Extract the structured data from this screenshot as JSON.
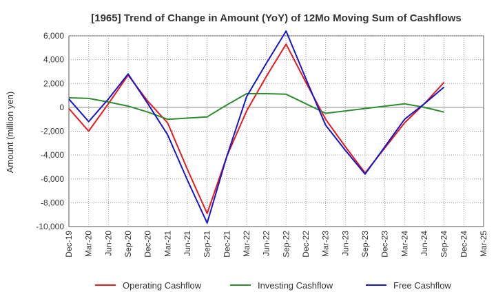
{
  "chart_data": {
    "type": "line",
    "title": "[1965]  Trend of Change in Amount (YoY) of 12Mo Moving Sum of Cashflows",
    "ylabel": "Amount (million yen)",
    "xlabel": "",
    "ylim": [
      -10000,
      6000
    ],
    "yticks": [
      6000,
      4000,
      2000,
      0,
      -2000,
      -4000,
      -6000,
      -8000,
      -10000
    ],
    "ytick_labels": [
      "6,000",
      "4,000",
      "2,000",
      "0",
      "-2,000",
      "-4,000",
      "-6,000",
      "-8,000",
      "-10,000"
    ],
    "categories": [
      "Dec-19",
      "Mar-20",
      "Jun-20",
      "Sep-20",
      "Dec-20",
      "Mar-21",
      "Jun-21",
      "Sep-21",
      "Dec-21",
      "Mar-22",
      "Jun-22",
      "Sep-22",
      "Dec-22",
      "Mar-23",
      "Jun-23",
      "Sep-23",
      "Dec-23",
      "Mar-24",
      "Jun-24",
      "Sep-24",
      "Dec-24",
      "Mar-25"
    ],
    "grid": true,
    "legend_position": "bottom",
    "series": [
      {
        "name": "Operating Cashflow",
        "color": "#e8191a",
        "values": [
          -100,
          -2000,
          300,
          2700,
          500,
          -1300,
          -5200,
          -8900,
          -4100,
          -300,
          2600,
          5300,
          2100,
          -1000,
          -3300,
          -5500,
          -3400,
          -1300,
          300,
          2100,
          null,
          null
        ]
      },
      {
        "name": "Investing Cashflow",
        "color": "#2e8b2e",
        "values": [
          800,
          750,
          450,
          100,
          -400,
          -1000,
          -900,
          -800,
          200,
          1150,
          1150,
          1100,
          300,
          -500,
          -300,
          -100,
          100,
          300,
          0,
          -400,
          null,
          null
        ]
      },
      {
        "name": "Free Cashflow",
        "color": "#1515cc",
        "values": [
          700,
          -1200,
          700,
          2800,
          300,
          -2300,
          -6100,
          -9700,
          -4100,
          900,
          3700,
          6400,
          2400,
          -1500,
          -3600,
          -5600,
          -3300,
          -1000,
          300,
          1700,
          null,
          null
        ]
      }
    ]
  }
}
